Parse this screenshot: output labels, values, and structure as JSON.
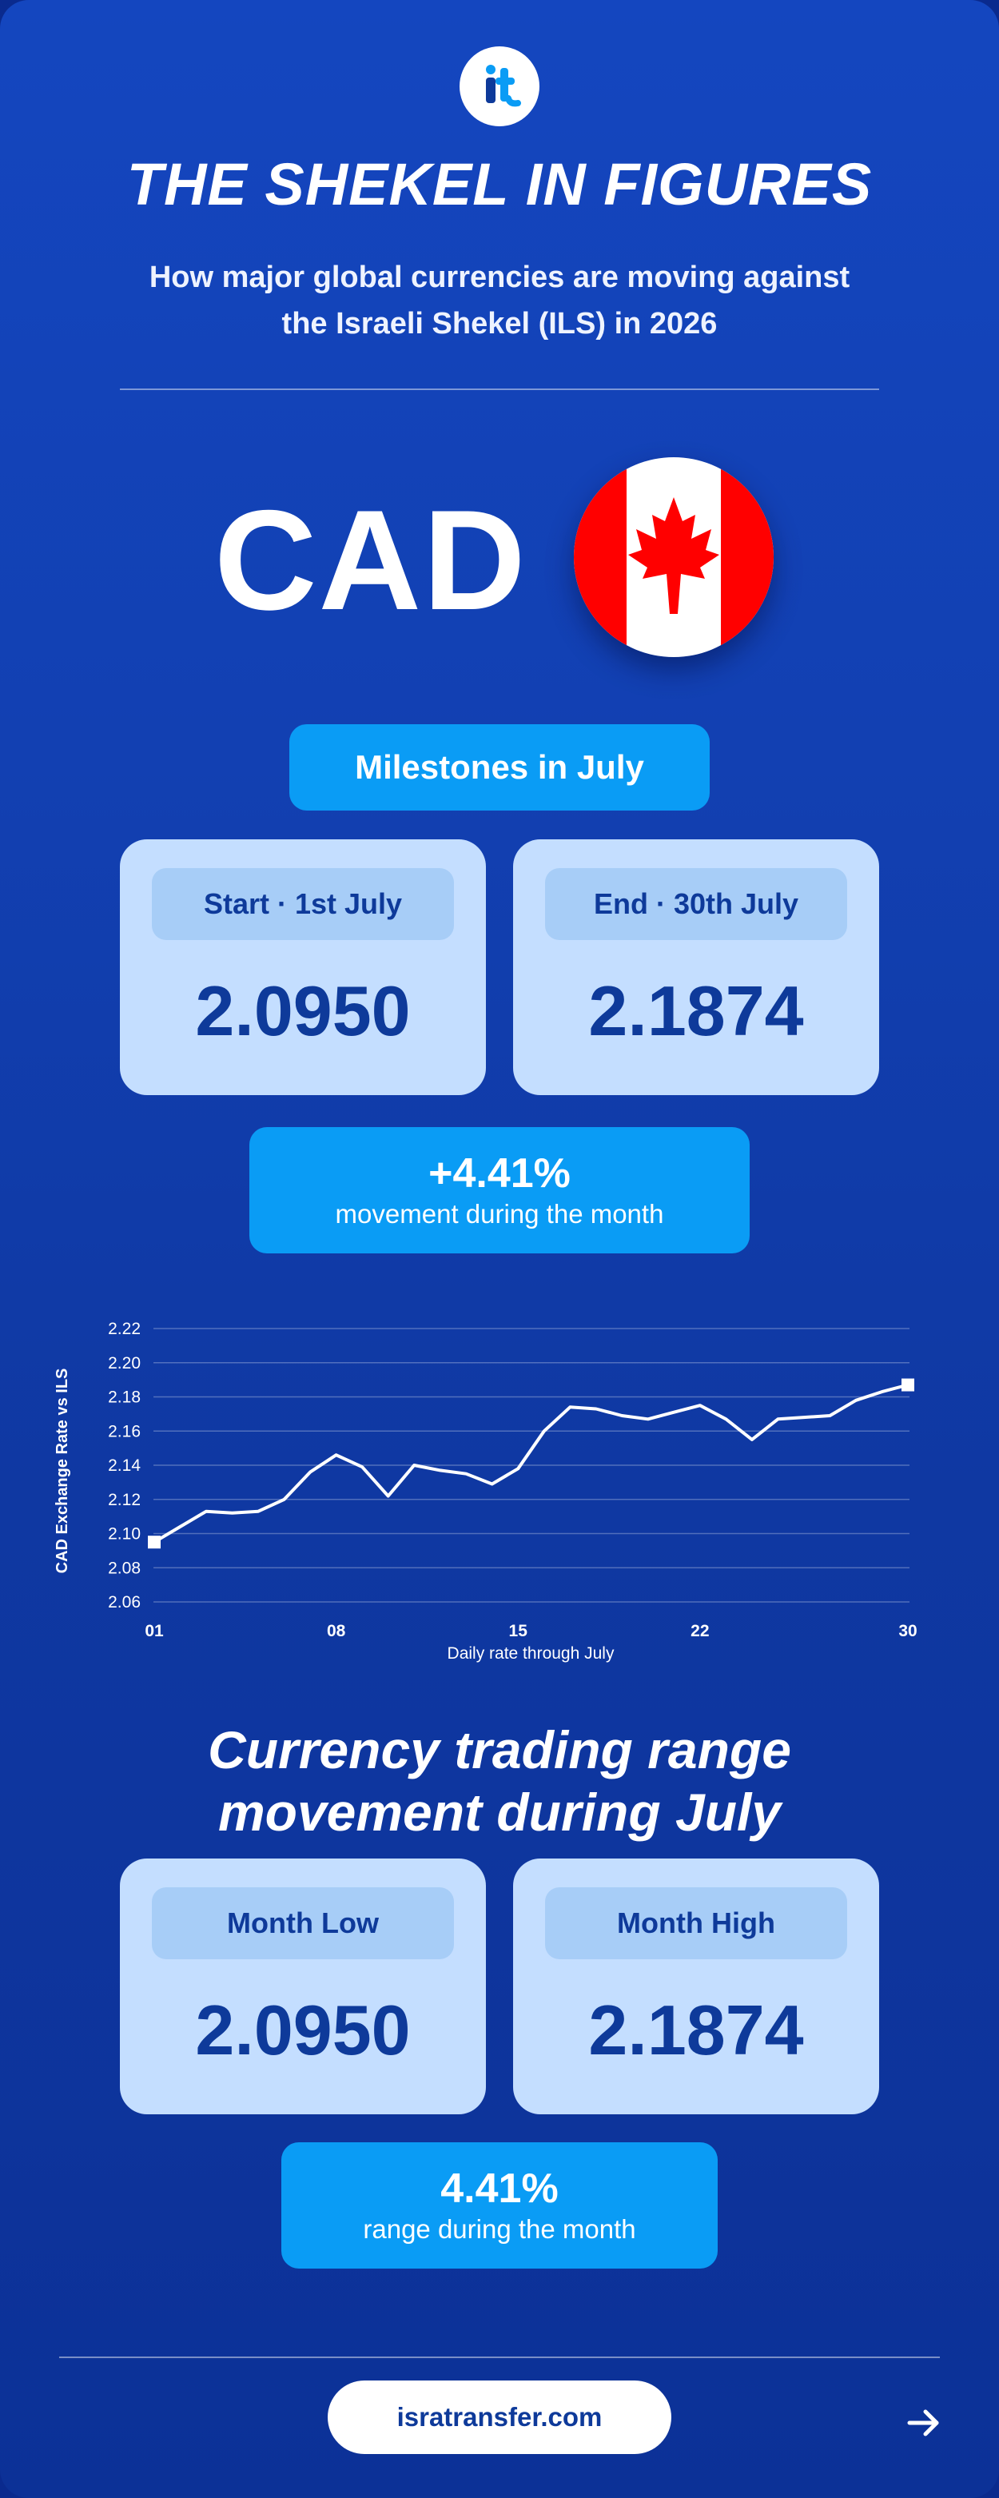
{
  "header": {
    "logo_icon": "israTransfer-logo-icon",
    "title": "THE SHEKEL IN FIGURES",
    "subtitle": "How major global currencies are moving against the Israeli Shekel (ILS) in 2026"
  },
  "currency": {
    "code": "CAD",
    "flag_icon": "canada-flag-icon"
  },
  "milestones": {
    "heading": "Milestones in July",
    "start_label": "Start · 1st July",
    "start_value": "2.0950",
    "end_label": "End · 30th July",
    "end_value": "2.1874",
    "change_value": "+4.41%",
    "change_caption": "movement during the month"
  },
  "chart_data": {
    "type": "line",
    "title": "",
    "ylabel": "CAD Exchange Rate vs ILS",
    "xlabel": "Daily rate through July",
    "ylim": [
      2.06,
      2.22
    ],
    "xlim": [
      1,
      30
    ],
    "yticks": [
      "2.22",
      "2.20",
      "2.18",
      "2.16",
      "2.14",
      "2.12",
      "2.10",
      "2.08",
      "2.06"
    ],
    "xticks": [
      {
        "x": 1,
        "label": "01"
      },
      {
        "x": 8,
        "label": "08"
      },
      {
        "x": 15,
        "label": "15"
      },
      {
        "x": 22,
        "label": "22"
      },
      {
        "x": 30,
        "label": "30"
      }
    ],
    "grid": true,
    "series": [
      {
        "x": [
          1,
          2,
          3,
          4,
          5,
          6,
          7,
          8,
          9,
          10,
          11,
          12,
          13,
          14,
          15,
          16,
          17,
          18,
          19,
          20,
          21,
          22,
          23,
          24,
          25,
          26,
          27,
          28,
          29,
          30
        ],
        "y": [
          2.095,
          2.104,
          2.113,
          2.112,
          2.113,
          2.12,
          2.136,
          2.146,
          2.139,
          2.122,
          2.14,
          2.137,
          2.135,
          2.129,
          2.138,
          2.16,
          2.174,
          2.173,
          2.169,
          2.167,
          2.171,
          2.175,
          2.167,
          2.155,
          2.167,
          2.168,
          2.169,
          2.178,
          2.183,
          2.187
        ]
      }
    ]
  },
  "range": {
    "heading": "Currency trading range movement during July",
    "low_label": "Month Low",
    "low_value": "2.0950",
    "high_label": "Month High",
    "high_value": "2.1874",
    "range_value": "4.41%",
    "range_caption": "range during the month"
  },
  "footer": {
    "link_text": "isratransfer.com",
    "arrow_icon": "arrow-right-icon"
  },
  "colors": {
    "background": "#1240b2",
    "accent": "#0a9cf5",
    "card": "#c4deff",
    "card_label": "#a7cdf7",
    "text_dark": "#0e3a9a"
  }
}
